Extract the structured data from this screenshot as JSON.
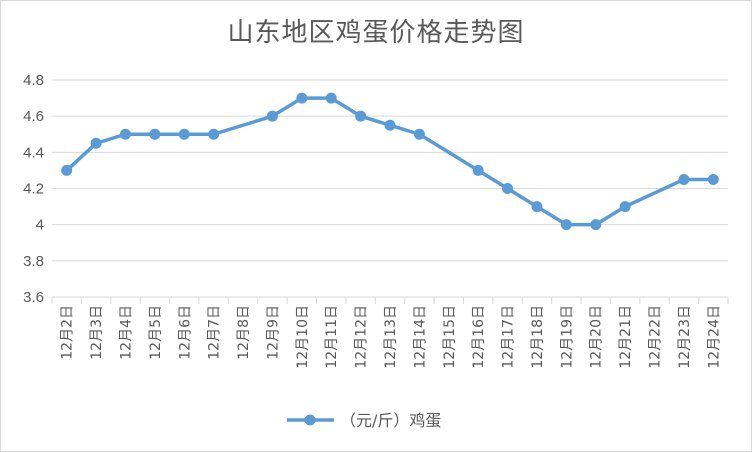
{
  "chart_data": {
    "type": "line",
    "title": "山东地区鸡蛋价格走势图",
    "xlabel": "",
    "ylabel": "",
    "ylim": [
      3.6,
      4.8
    ],
    "yticks": [
      "3.6",
      "3.8",
      "4",
      "4.2",
      "4.4",
      "4.6",
      "4.8"
    ],
    "grid": true,
    "legend_position": "bottom",
    "series_color": "#5b9bd5",
    "grid_color": "#d9d9d9",
    "categories": [
      "12月2日",
      "12月3日",
      "12月4日",
      "12月5日",
      "12月6日",
      "12月7日",
      "12月8日",
      "12月9日",
      "12月10日",
      "12月11日",
      "12月12日",
      "12月13日",
      "12月14日",
      "12月15日",
      "12月16日",
      "12月17日",
      "12月18日",
      "12月19日",
      "12月20日",
      "12月21日",
      "12月22日",
      "12月23日",
      "12月24日"
    ],
    "series": [
      {
        "name": "（元/斤）鸡蛋",
        "values": [
          4.3,
          4.45,
          4.5,
          4.5,
          4.5,
          4.5,
          null,
          4.6,
          4.7,
          4.7,
          4.6,
          4.55,
          4.5,
          null,
          4.3,
          4.2,
          4.1,
          4.0,
          4.0,
          4.1,
          null,
          4.25,
          4.25
        ]
      }
    ]
  }
}
